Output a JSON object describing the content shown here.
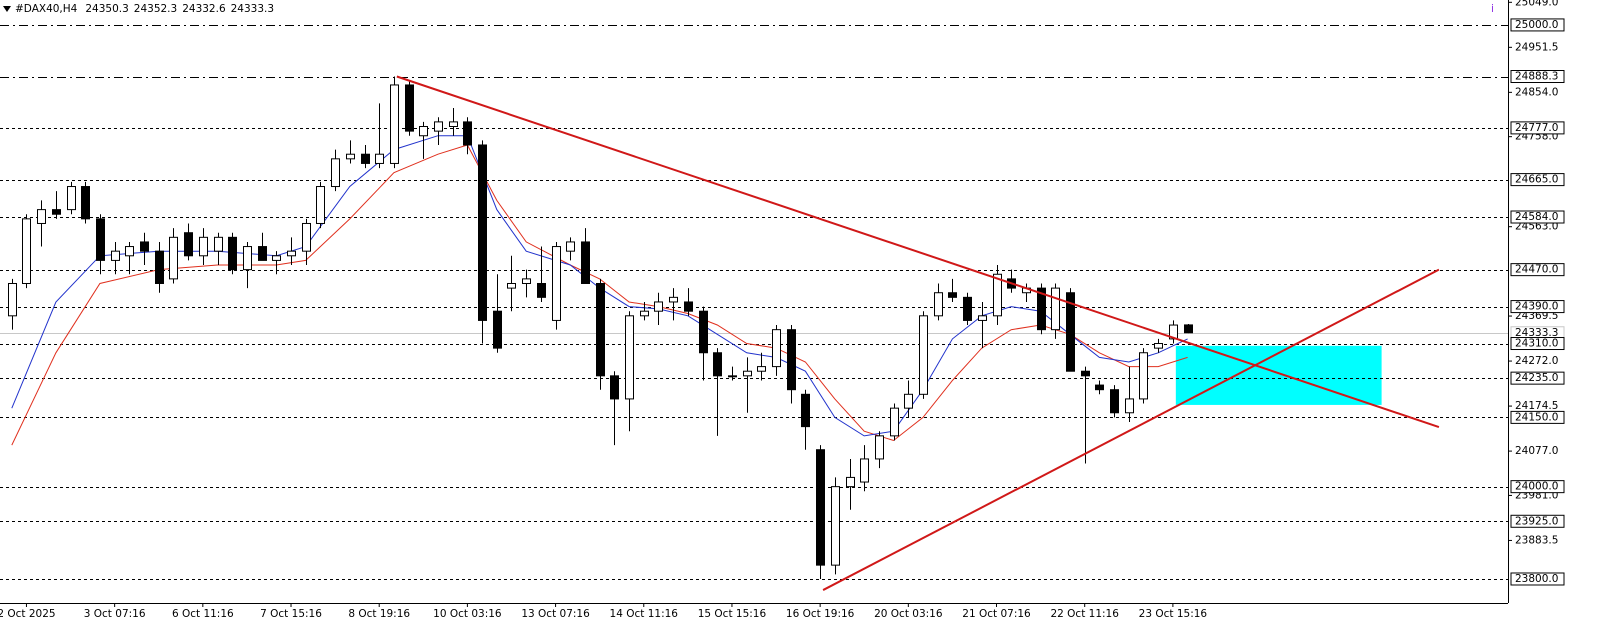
{
  "chart_data": {
    "type": "candlestick",
    "symbol": "#DAX40,H4",
    "marker": "i",
    "categories": [
      null,
      "2 Oct 2025",
      null,
      null,
      null,
      null,
      null,
      "3 Oct 07:16",
      null,
      null,
      null,
      null,
      null,
      "6 Oct 11:16",
      null,
      null,
      null,
      null,
      null,
      "7 Oct 15:16",
      null,
      null,
      null,
      null,
      null,
      "8 Oct 19:16",
      null,
      null,
      null,
      null,
      null,
      "10 Oct 03:16",
      null,
      null,
      null,
      null,
      null,
      "13 Oct 07:16",
      null,
      null,
      null,
      null,
      null,
      "14 Oct 11:16",
      null,
      null,
      null,
      null,
      null,
      "15 Oct 15:16",
      null,
      null,
      null,
      null,
      null,
      "16 Oct 19:16",
      null,
      null,
      null,
      null,
      null,
      "20 Oct 03:16",
      null,
      null,
      null,
      null,
      null,
      "21 Oct 07:16",
      null,
      null,
      null,
      null,
      null,
      "22 Oct 11:16",
      null,
      null,
      null,
      null,
      null,
      "23 Oct 15:16",
      null
    ],
    "open": [
      24370,
      24440,
      24570,
      24600,
      24600,
      24650,
      24580,
      24490,
      24500,
      24530,
      24510,
      24450,
      24550,
      24500,
      24510,
      24540,
      24470,
      24520,
      24490,
      24500,
      24510,
      24570,
      24650,
      24710,
      24720,
      24700,
      24700,
      24870,
      24760,
      24770,
      24780,
      24790,
      24740,
      24380,
      24430,
      24440,
      24440,
      24360,
      24510,
      24530,
      24440,
      24240,
      24190,
      24370,
      24380,
      24400,
      24400,
      24380,
      24290,
      24240,
      24240,
      24250,
      24260,
      24340,
      24200,
      24080,
      23830,
      24000,
      24010,
      24060,
      24110,
      24170,
      24200,
      24370,
      24420,
      24410,
      24360,
      24370,
      24450,
      24420,
      24430,
      24340,
      24420,
      24250,
      24220,
      24210,
      24160,
      24190,
      24300,
      24320,
      24350.3
    ],
    "high": [
      24450,
      24590,
      24620,
      24640,
      24660,
      24660,
      24590,
      24530,
      24530,
      24550,
      24530,
      24560,
      24570,
      24560,
      24550,
      24550,
      24530,
      24550,
      24510,
      24540,
      24580,
      24660,
      24730,
      24750,
      24740,
      24830,
      24888.3,
      24880,
      24790,
      24800,
      24820,
      24800,
      24750,
      24460,
      24500,
      24470,
      24520,
      24530,
      24540,
      24560,
      24450,
      24250,
      24380,
      24400,
      24420,
      24430,
      24430,
      24390,
      24300,
      24260,
      24280,
      24290,
      24350,
      24350,
      24210,
      24090,
      24020,
      24060,
      24090,
      24120,
      24180,
      24230,
      24380,
      24440,
      24450,
      24420,
      24400,
      24480,
      24470,
      24440,
      24440,
      24440,
      24430,
      24260,
      24230,
      24220,
      24260,
      24300,
      24320,
      24360,
      24352.3
    ],
    "low": [
      24340,
      24430,
      24520,
      24580,
      24590,
      24570,
      24460,
      24460,
      24460,
      24480,
      24420,
      24440,
      24490,
      24480,
      24480,
      24460,
      24430,
      24490,
      24460,
      24480,
      24480,
      24560,
      24640,
      24700,
      24690,
      24690,
      24690,
      24760,
      24710,
      24740,
      24760,
      24720,
      24310,
      24290,
      24380,
      24410,
      24400,
      24340,
      24490,
      24440,
      24210,
      24090,
      24120,
      24360,
      24350,
      24360,
      24370,
      24230,
      24110,
      24230,
      24160,
      24230,
      24240,
      24180,
      24080,
      23800,
      23810,
      23950,
      23990,
      24040,
      24100,
      24150,
      24190,
      24360,
      24400,
      24350,
      24300,
      24350,
      24420,
      24400,
      24330,
      24320,
      24250,
      24050,
      24200,
      24150,
      24140,
      24180,
      24290,
      24310,
      24332.6
    ],
    "close": [
      24440,
      24580,
      24600,
      24590,
      24650,
      24580,
      24490,
      24510,
      24520,
      24510,
      24440,
      24540,
      24500,
      24540,
      24540,
      24470,
      24520,
      24490,
      24500,
      24510,
      24570,
      24650,
      24710,
      24720,
      24700,
      24720,
      24870,
      24770,
      24780,
      24790,
      24790,
      24740,
      24360,
      24300,
      24440,
      24450,
      24410,
      24520,
      24530,
      24440,
      24240,
      24190,
      24370,
      24380,
      24400,
      24410,
      24380,
      24290,
      24240,
      24240,
      24250,
      24260,
      24340,
      24210,
      24130,
      23830,
      24000,
      24020,
      24060,
      24110,
      24170,
      24200,
      24370,
      24420,
      24410,
      24360,
      24370,
      24460,
      24430,
      24430,
      24340,
      24430,
      24250,
      24240,
      24210,
      24160,
      24190,
      24290,
      24310,
      24350,
      24333.3
    ],
    "overlays": [
      {
        "color": "#e0301e",
        "x": [
          0,
          3,
          6,
          10,
          14,
          18,
          20,
          23,
          26,
          29,
          31,
          33,
          35,
          38,
          40,
          42,
          44,
          46,
          48,
          50,
          52,
          54,
          56,
          58,
          60,
          62,
          64,
          66,
          68,
          70,
          72,
          74,
          76,
          78,
          80
        ],
        "values": [
          24090,
          24290,
          24440,
          24470,
          24480,
          24480,
          24490,
          24580,
          24680,
          24720,
          24740,
          24620,
          24530,
          24480,
          24450,
          24400,
          24390,
          24375,
          24350,
          24310,
          24300,
          24270,
          24190,
          24120,
          24100,
          24150,
          24230,
          24300,
          24340,
          24350,
          24330,
          24290,
          24260,
          24260,
          24280
        ]
      },
      {
        "color": "#2233cc",
        "x": [
          0,
          3,
          6,
          10,
          14,
          18,
          20,
          23,
          26,
          29,
          31,
          33,
          35,
          38,
          40,
          42,
          44,
          46,
          48,
          50,
          52,
          54,
          56,
          58,
          60,
          62,
          64,
          66,
          68,
          70,
          72,
          74,
          76,
          78,
          80
        ],
        "values": [
          24170,
          24400,
          24500,
          24510,
          24510,
          24500,
          24520,
          24650,
          24730,
          24760,
          24760,
          24600,
          24510,
          24480,
          24430,
          24390,
          24385,
          24370,
          24330,
          24290,
          24280,
          24250,
          24150,
          24110,
          24120,
          24210,
          24320,
          24370,
          24390,
          24380,
          24330,
          24280,
          24270,
          24290,
          24320
        ]
      }
    ],
    "levels": [
      {
        "value": 25000,
        "label": "25000.0",
        "style": "dashdot"
      },
      {
        "value": 24888.3,
        "label": "24888.3",
        "style": "dashdot"
      },
      {
        "value": 24777,
        "label": "24777.0",
        "style": "dashed"
      },
      {
        "value": 24665,
        "label": "24665.0",
        "style": "dashed"
      },
      {
        "value": 24584,
        "label": "24584.0",
        "style": "dashed"
      },
      {
        "value": 24470,
        "label": "24470.0",
        "style": "dashed"
      },
      {
        "value": 24390,
        "label": "24390.0",
        "style": "dashed"
      },
      {
        "value": 24333.3,
        "label": "24333.3",
        "style": "solid"
      },
      {
        "value": 24310,
        "label": "24310.0",
        "style": "dashed"
      },
      {
        "value": 24235,
        "label": "24235.0",
        "style": "dashed"
      },
      {
        "value": 24150,
        "label": "24150.0",
        "style": "dashed"
      },
      {
        "value": 24000,
        "label": "24000.0",
        "style": "dashed"
      },
      {
        "value": 23925,
        "label": "23925.0",
        "style": "dashed"
      },
      {
        "value": 23800,
        "label": "23800.0",
        "style": "dashed"
      }
    ],
    "trendlines": [
      {
        "color": "#d01818",
        "points": [
          [
            26.2,
            24888.3
          ],
          [
            97.1,
            24129
          ]
        ]
      },
      {
        "color": "#d01818",
        "points": [
          [
            55.2,
            23776
          ],
          [
            97.1,
            24470
          ]
        ]
      }
    ],
    "zones": [
      {
        "color": "#00ffff",
        "x": [
          79.2,
          93.2
        ],
        "y": [
          24177,
          24305
        ]
      }
    ],
    "xlim": [
      -0.8,
      101.8
    ],
    "ylim": [
      23748,
      25054
    ],
    "yticks": [
      {
        "value": 25049,
        "label": "25049.0"
      },
      24951.5,
      {
        "value": 24854,
        "label": "24854.0"
      },
      {
        "value": 24758,
        "label": "24758.0"
      },
      {
        "value": 24563,
        "label": "24563.0"
      },
      24369.5,
      {
        "value": 24272,
        "label": "24272.0"
      },
      24174.5,
      {
        "value": 24077,
        "label": "24077.0"
      },
      {
        "value": 23981,
        "label": "23981.0"
      },
      23883.5
    ]
  }
}
